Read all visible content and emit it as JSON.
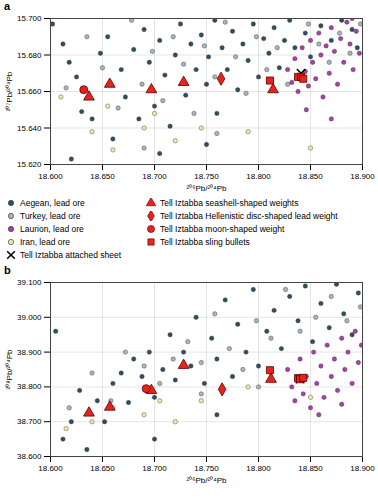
{
  "chart_data": [
    {
      "type": "scatter",
      "title": "a",
      "x_label": "²⁰⁶Pb/²⁰⁴Pb",
      "y_label": "²⁰⁷Pb/²⁰⁴Pb",
      "grid": true,
      "xlim": [
        18.6,
        18.9
      ],
      "xticks": [
        {
          "value": 18.6,
          "label": "18.600"
        },
        {
          "value": 18.65,
          "label": "18.650"
        },
        {
          "value": 18.7,
          "label": "18.700"
        },
        {
          "value": 18.75,
          "label": "18.750"
        },
        {
          "value": 18.8,
          "label": "18.800"
        },
        {
          "value": 18.85,
          "label": "18.850"
        },
        {
          "value": 18.9,
          "label": "18.900"
        }
      ],
      "ylim": [
        15.62,
        15.7
      ],
      "yticks": [
        {
          "value": 15.62,
          "label": "15.620"
        },
        {
          "value": 15.64,
          "label": "15.640"
        },
        {
          "value": 15.66,
          "label": "15.660"
        },
        {
          "value": 15.68,
          "label": "15.680"
        },
        {
          "value": 15.7,
          "label": "15.700"
        }
      ],
      "series": [
        {
          "name": "Aegean, lead ore",
          "color": "#2f4f5f",
          "marker": "circle",
          "x": [
            18.602,
            18.612,
            18.618,
            18.625,
            18.63,
            18.64,
            18.648,
            18.655,
            18.66,
            18.668,
            18.672,
            18.68,
            18.685,
            18.69,
            18.695,
            18.7,
            18.705,
            18.71,
            18.715,
            18.72,
            18.725,
            18.73,
            18.735,
            18.74,
            18.745,
            18.75,
            18.752,
            18.758,
            18.76,
            18.765,
            18.77,
            18.775,
            18.78,
            18.785,
            18.79,
            18.795,
            18.8,
            18.805,
            18.81,
            18.815,
            18.82,
            18.825,
            18.83,
            18.835,
            18.845,
            18.85,
            18.86,
            18.87,
            18.88,
            18.89,
            18.895,
            18.705,
            18.75,
            18.62
          ],
          "values": [
            15.697,
            15.686,
            15.676,
            15.668,
            15.649,
            15.645,
            15.681,
            15.69,
            15.634,
            15.672,
            15.657,
            15.683,
            15.645,
            15.694,
            15.676,
            15.652,
            15.688,
            15.669,
            15.641,
            15.68,
            15.697,
            15.658,
            15.686,
            15.672,
            15.691,
            15.664,
            15.679,
            15.699,
            15.648,
            15.684,
            15.672,
            15.693,
            15.661,
            15.686,
            15.677,
            15.697,
            15.668,
            15.689,
            15.681,
            15.695,
            15.673,
            15.688,
            15.699,
            15.684,
            15.692,
            15.679,
            15.696,
            15.688,
            15.699,
            15.694,
            15.684,
            15.626,
            15.631,
            15.623
          ]
        },
        {
          "name": "Turkey, lead ore",
          "color": "#a9b4bb",
          "marker": "circle",
          "x": [
            18.615,
            18.635,
            18.65,
            18.665,
            18.678,
            18.688,
            18.698,
            18.708,
            18.718,
            18.728,
            18.738,
            18.748,
            18.758,
            18.768,
            18.778,
            18.788,
            18.798,
            18.808,
            18.818,
            18.828,
            18.848,
            18.858,
            18.868,
            18.878,
            18.888,
            18.898,
            18.76,
            18.69
          ],
          "values": [
            15.662,
            15.69,
            15.673,
            15.651,
            15.699,
            15.664,
            15.682,
            15.655,
            15.69,
            15.675,
            15.648,
            15.685,
            15.668,
            15.698,
            15.679,
            15.659,
            15.69,
            15.672,
            15.684,
            15.664,
            15.697,
            15.686,
            15.676,
            15.692,
            15.681,
            15.697,
            15.637,
            15.629
          ]
        },
        {
          "name": "Laurion, lead ore",
          "color": "#b03cb0",
          "marker": "circle",
          "x": [
            18.828,
            18.832,
            18.835,
            18.838,
            18.842,
            18.845,
            18.848,
            18.85,
            18.852,
            18.855,
            18.858,
            18.86,
            18.862,
            18.865,
            18.868,
            18.87,
            18.873,
            18.876,
            18.879,
            18.882,
            18.885,
            18.888,
            18.891,
            18.894,
            18.897,
            18.846,
            18.87,
            18.89
          ],
          "values": [
            15.672,
            15.665,
            15.678,
            15.66,
            15.684,
            15.671,
            15.663,
            15.688,
            15.676,
            15.667,
            15.692,
            15.68,
            15.657,
            15.685,
            15.67,
            15.695,
            15.682,
            15.664,
            15.689,
            15.676,
            15.698,
            15.686,
            15.672,
            15.693,
            15.681,
            15.65,
            15.645,
            15.7
          ]
        },
        {
          "name": "Iran, lead ore",
          "color": "#efe8a8",
          "marker": "circle",
          "x": [
            18.61,
            18.64,
            18.655,
            18.69,
            18.72,
            18.745,
            18.79,
            18.85,
            18.7,
            18.66
          ],
          "values": [
            15.657,
            15.638,
            15.652,
            15.64,
            15.633,
            15.64,
            15.638,
            15.629,
            15.648,
            15.628
          ]
        },
        {
          "name": "Tell Iztabba attached sheet",
          "color": "#000000",
          "marker": "x",
          "x": [
            18.841
          ],
          "values": [
            15.67
          ]
        },
        {
          "name": "Tell Iztabba seashell-shaped weights",
          "color": "#e8231c",
          "marker": "triangle",
          "x": [
            18.637,
            18.657,
            18.697,
            18.728,
            18.814
          ],
          "values": [
            15.657,
            15.664,
            15.661,
            15.665,
            15.661
          ]
        },
        {
          "name": "Tell Iztabba Hellenistic disc-shaped lead weight",
          "color": "#e8231c",
          "marker": "diamond",
          "x": [
            18.764
          ],
          "values": [
            15.667
          ]
        },
        {
          "name": "Tell Iztabba moon-shaped weight",
          "color": "#e8231c",
          "marker": "circle",
          "x": [
            18.632
          ],
          "values": [
            15.661
          ]
        },
        {
          "name": "Tell Iztabba sling bullets",
          "color": "#e8231c",
          "marker": "square",
          "x": [
            18.811,
            18.838,
            18.841,
            18.843
          ],
          "values": [
            15.666,
            15.668,
            15.668,
            15.667
          ]
        }
      ]
    },
    {
      "type": "scatter",
      "title": "b",
      "x_label": "²⁰⁶Pb/²⁰⁴Pb",
      "y_label": "²⁰⁸Pb/²⁰⁴Pb",
      "grid": true,
      "xlim": [
        18.6,
        18.9
      ],
      "xticks": [
        {
          "value": 18.6,
          "label": "18.600"
        },
        {
          "value": 18.65,
          "label": "18.650"
        },
        {
          "value": 18.7,
          "label": "18.700"
        },
        {
          "value": 18.75,
          "label": "18.750"
        },
        {
          "value": 18.8,
          "label": "18.800"
        },
        {
          "value": 18.85,
          "label": "18.850"
        },
        {
          "value": 18.9,
          "label": "18.900"
        }
      ],
      "ylim": [
        38.6,
        39.1
      ],
      "yticks": [
        {
          "value": 38.6,
          "label": "38.600"
        },
        {
          "value": 38.7,
          "label": "38.700"
        },
        {
          "value": 38.8,
          "label": "38.800"
        },
        {
          "value": 38.9,
          "label": "38.900"
        },
        {
          "value": 39.0,
          "label": "39.000"
        },
        {
          "value": 39.1,
          "label": "39.100"
        }
      ],
      "series": [
        {
          "name": "Aegean, lead ore",
          "color": "#2f4f5f",
          "marker": "circle",
          "x": [
            18.605,
            18.612,
            18.62,
            18.628,
            18.635,
            18.645,
            18.652,
            18.66,
            18.668,
            18.675,
            18.68,
            18.688,
            18.695,
            18.7,
            18.708,
            18.715,
            18.72,
            18.728,
            18.735,
            18.74,
            18.748,
            18.755,
            18.76,
            18.768,
            18.775,
            18.78,
            18.788,
            18.795,
            18.8,
            18.808,
            18.815,
            18.822,
            18.83,
            18.838,
            18.845,
            18.852,
            18.86,
            18.868,
            18.875,
            18.882,
            18.89,
            18.896,
            18.7,
            18.76
          ],
          "values": [
            38.96,
            38.65,
            38.7,
            38.79,
            38.62,
            38.76,
            38.7,
            38.81,
            38.84,
            38.755,
            38.88,
            38.83,
            38.9,
            38.77,
            38.85,
            38.95,
            38.82,
            38.9,
            38.86,
            39.0,
            38.81,
            38.94,
            38.88,
            39.05,
            38.83,
            38.98,
            38.9,
            39.08,
            38.86,
            38.96,
            39.02,
            38.91,
            39.06,
            38.99,
            39.09,
            38.93,
            39.04,
            38.97,
            39.095,
            39.01,
            38.95,
            39.07,
            38.65,
            38.72
          ]
        },
        {
          "name": "Turkey, lead ore",
          "color": "#a9b4bb",
          "marker": "circle",
          "x": [
            18.618,
            18.64,
            18.658,
            18.672,
            18.69,
            18.705,
            18.718,
            18.732,
            18.745,
            18.758,
            18.772,
            18.785,
            18.798,
            18.812,
            18.826,
            18.84,
            18.855,
            18.87,
            18.885,
            18.898,
            18.745,
            18.8
          ],
          "values": [
            38.74,
            38.84,
            38.76,
            38.9,
            38.86,
            38.81,
            38.88,
            38.93,
            38.87,
            39.01,
            38.91,
            38.85,
            38.99,
            38.94,
            39.08,
            38.96,
            39.0,
            39.06,
            38.99,
            39.03,
            38.78,
            38.8
          ]
        },
        {
          "name": "Laurion, lead ore",
          "color": "#b03cb0",
          "marker": "circle",
          "x": [
            18.828,
            18.832,
            18.835,
            18.84,
            18.843,
            18.846,
            18.85,
            18.853,
            18.856,
            18.86,
            18.863,
            18.866,
            18.87,
            18.873,
            18.876,
            18.88,
            18.883,
            18.886,
            18.89,
            18.893,
            18.896,
            18.899,
            18.858,
            18.88
          ],
          "values": [
            38.85,
            38.8,
            38.76,
            38.88,
            38.78,
            38.83,
            38.74,
            38.9,
            38.81,
            38.86,
            38.77,
            38.92,
            38.83,
            38.88,
            38.79,
            38.94,
            38.85,
            38.9,
            38.81,
            38.96,
            38.87,
            38.92,
            38.72,
            38.75
          ]
        },
        {
          "name": "Iran, lead ore",
          "color": "#efe8a8",
          "marker": "circle",
          "x": [
            18.615,
            18.64,
            18.66,
            18.69,
            18.705,
            18.72,
            18.745,
            18.79,
            18.85
          ],
          "values": [
            38.68,
            38.7,
            38.74,
            38.72,
            38.76,
            38.7,
            38.76,
            38.8,
            38.77
          ]
        },
        {
          "name": "Tell Iztabba attached sheet",
          "color": "#000000",
          "marker": "x",
          "x": [
            18.84
          ],
          "values": [
            38.823
          ]
        },
        {
          "name": "Tell Iztabba seashell-shaped weights",
          "color": "#e8231c",
          "marker": "triangle",
          "x": [
            18.637,
            18.657,
            18.697,
            18.728,
            18.812
          ],
          "values": [
            38.725,
            38.742,
            38.79,
            38.862,
            38.822
          ]
        },
        {
          "name": "Tell Iztabba Hellenistic disc-shaped lead weight",
          "color": "#e8231c",
          "marker": "diamond",
          "x": [
            18.765
          ],
          "values": [
            38.793
          ]
        },
        {
          "name": "Tell Iztabba moon-shaped weight",
          "color": "#e8231c",
          "marker": "circle",
          "x": [
            18.692
          ],
          "values": [
            38.795
          ]
        },
        {
          "name": "Tell Iztabba sling bullets",
          "color": "#e8231c",
          "marker": "square",
          "x": [
            18.811,
            18.838,
            18.84,
            18.843
          ],
          "values": [
            38.848,
            38.825,
            38.822,
            38.826
          ]
        }
      ]
    }
  ]
}
